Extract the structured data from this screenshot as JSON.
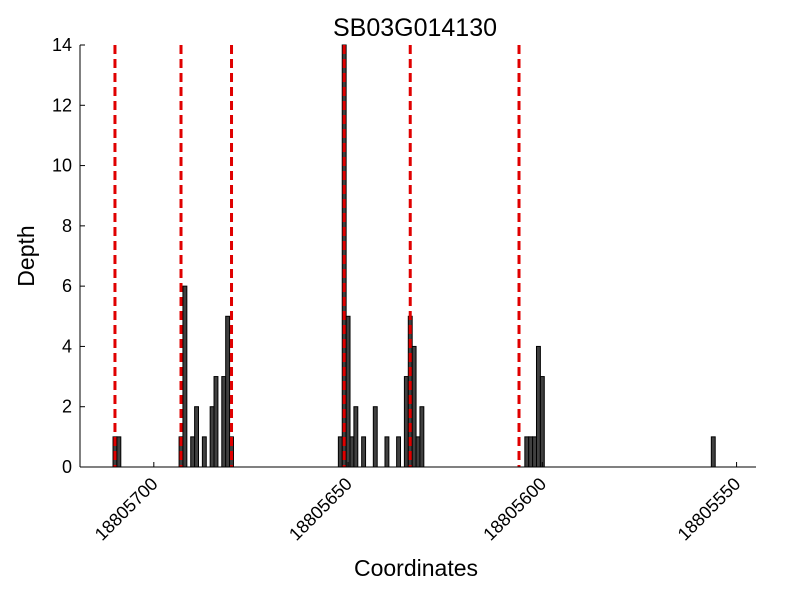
{
  "chart_data": {
    "type": "bar",
    "title": "SB03G014130",
    "xlabel": "Coordinates",
    "ylabel": "Depth",
    "x_reversed": true,
    "xlim": [
      18805719,
      18805545
    ],
    "ylim": [
      0,
      14
    ],
    "bar_width": 1,
    "x_ticks": [
      18805700,
      18805650,
      18805600,
      18805550
    ],
    "x_tick_labels": [
      "18805700",
      "18805650",
      "18805600",
      "18805550"
    ],
    "y_ticks": [
      0,
      2,
      4,
      6,
      8,
      10,
      12,
      14
    ],
    "y_tick_labels": [
      "0",
      "2",
      "4",
      "6",
      "8",
      "10",
      "12",
      "14"
    ],
    "bar_color": "#404040",
    "marker_color": "#e00000",
    "grid": false,
    "series": [
      {
        "x": [
          18805710,
          18805709,
          18805693,
          18805692,
          18805690,
          18805689,
          18805687,
          18805685,
          18805684,
          18805682,
          18805681,
          18805680,
          18805652,
          18805651,
          18805650,
          18805649,
          18805648,
          18805646,
          18805643,
          18805640,
          18805637,
          18805635,
          18805634,
          18805633,
          18805632,
          18805631,
          18805604,
          18805603,
          18805602,
          18805601,
          18805600,
          18805556
        ],
        "values": [
          1,
          1,
          1,
          6,
          1,
          2,
          1,
          2,
          3,
          3,
          5,
          1,
          1,
          14,
          5,
          1,
          2,
          1,
          2,
          1,
          1,
          3,
          5,
          4,
          1,
          2,
          1,
          1,
          1,
          4,
          3,
          1
        ]
      }
    ],
    "markers": [
      18805710,
      18805693,
      18805680,
      18805651,
      18805634,
      18805606
    ]
  }
}
